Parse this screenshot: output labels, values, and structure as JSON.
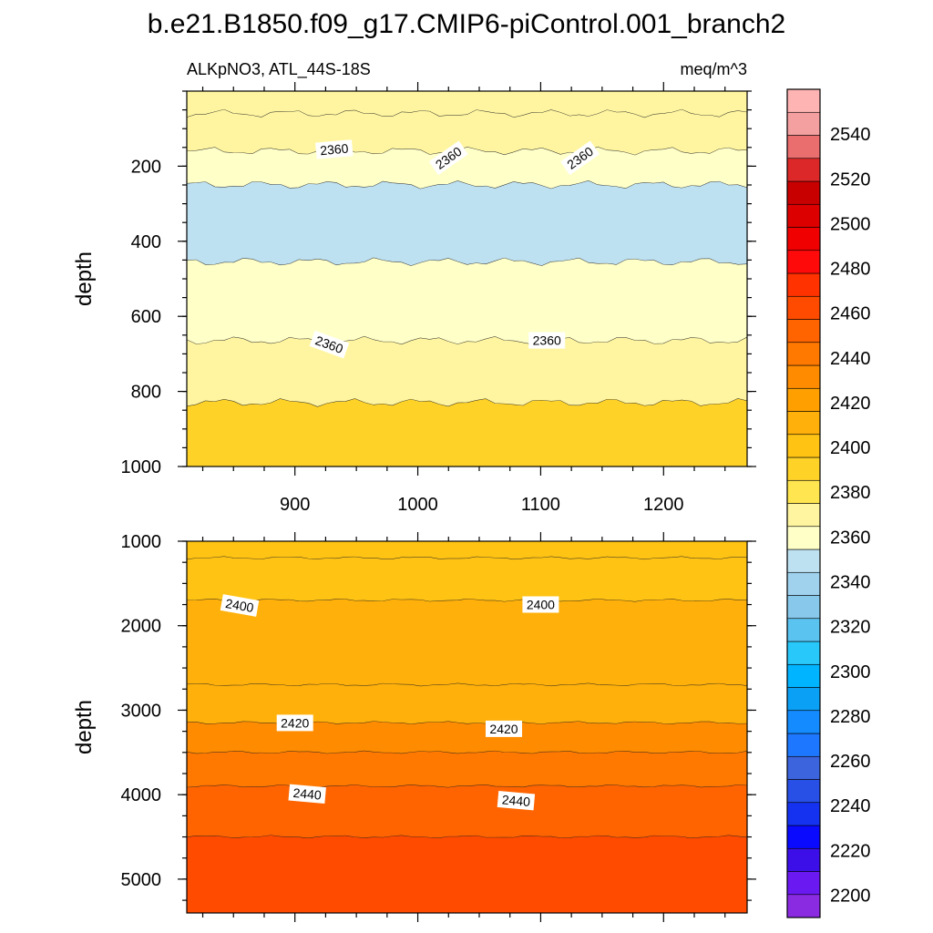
{
  "chart_data": {
    "type": "heatmap",
    "title": "b.e21.B1850.f09_g17.CMIP6-piControl.001_branch2",
    "left_subtitle": "ALKpNO3, ATL_44S-18S",
    "right_subtitle": "meq/m^3",
    "panels": [
      {
        "ylabel": "depth",
        "xlim": [
          812,
          1268
        ],
        "ylim": [
          0,
          1000
        ],
        "y_reversed": true,
        "x_ticks": [
          900,
          1000,
          1100,
          1200
        ],
        "x_tick_labels": [
          "900",
          "1000",
          "1100",
          "1200"
        ],
        "y_ticks": [
          200,
          400,
          600,
          800,
          1000
        ],
        "y_tick_labels": [
          "200",
          "400",
          "600",
          "800",
          "1000"
        ],
        "bands": [
          {
            "from": 0,
            "to": 60,
            "level": 2360
          },
          {
            "from": 60,
            "to": 160,
            "level": 2360
          },
          {
            "from": 160,
            "to": 250,
            "level": 2350
          },
          {
            "from": 250,
            "to": 455,
            "level": 2340
          },
          {
            "from": 455,
            "to": 665,
            "level": 2350
          },
          {
            "from": 665,
            "to": 830,
            "level": 2360
          },
          {
            "from": 830,
            "to": 1000,
            "level": 2380
          }
        ],
        "contour_labels": [
          {
            "text": "2360",
            "x": 932,
            "y": 155,
            "angle": -5
          },
          {
            "text": "2360",
            "x": 1025,
            "y": 178,
            "angle": -35
          },
          {
            "text": "2360",
            "x": 1132,
            "y": 178,
            "angle": -35
          },
          {
            "text": "2360",
            "x": 928,
            "y": 675,
            "angle": 20
          },
          {
            "text": "2360",
            "x": 1105,
            "y": 664,
            "angle": 0
          }
        ]
      },
      {
        "ylabel": "depth",
        "xlim": [
          812,
          1268
        ],
        "ylim": [
          1000,
          5400
        ],
        "y_reversed": true,
        "x_ticks": [
          900,
          1000,
          1100,
          1200
        ],
        "y_ticks": [
          1000,
          2000,
          3000,
          4000,
          5000
        ],
        "y_tick_labels": [
          "1000",
          "2000",
          "3000",
          "4000",
          "5000"
        ],
        "bands": [
          {
            "from": 1000,
            "to": 1200,
            "level": 2390
          },
          {
            "from": 1200,
            "to": 1700,
            "level": 2395
          },
          {
            "from": 1700,
            "to": 2700,
            "level": 2400
          },
          {
            "from": 2700,
            "to": 3150,
            "level": 2405
          },
          {
            "from": 3150,
            "to": 3500,
            "level": 2420
          },
          {
            "from": 3500,
            "to": 3900,
            "level": 2430
          },
          {
            "from": 3900,
            "to": 4500,
            "level": 2440
          },
          {
            "from": 4500,
            "to": 5400,
            "level": 2450
          }
        ],
        "contour_labels": [
          {
            "text": "2400",
            "x": 855,
            "y": 1760,
            "angle": 10
          },
          {
            "text": "2400",
            "x": 1100,
            "y": 1750,
            "angle": 0
          },
          {
            "text": "2420",
            "x": 900,
            "y": 3150,
            "angle": 0
          },
          {
            "text": "2420",
            "x": 1070,
            "y": 3220,
            "angle": 0
          },
          {
            "text": "2440",
            "x": 910,
            "y": 3990,
            "angle": 5
          },
          {
            "text": "2440",
            "x": 1080,
            "y": 4070,
            "angle": 5
          }
        ]
      }
    ],
    "colorbar": {
      "min": 2190,
      "max": 2560,
      "step": 10,
      "labels": [
        "2200",
        "2220",
        "2240",
        "2260",
        "2280",
        "2300",
        "2320",
        "2340",
        "2360",
        "2380",
        "2400",
        "2420",
        "2440",
        "2460",
        "2480",
        "2500",
        "2520",
        "2540"
      ],
      "colors": [
        "#8a2be2",
        "#6a1af0",
        "#3c0fe8",
        "#0a0aff",
        "#1432f0",
        "#2850e6",
        "#3c64dc",
        "#1e78ff",
        "#148cff",
        "#0aa0f5",
        "#00b4ff",
        "#28c8fa",
        "#5ac3f0",
        "#87c8eb",
        "#a0d2ee",
        "#bee1f2",
        "#ffffc8",
        "#fff5a0",
        "#ffe650",
        "#ffd228",
        "#ffc314",
        "#ffb00a",
        "#ffa000",
        "#ff8c00",
        "#ff7800",
        "#ff6400",
        "#ff4b00",
        "#ff3200",
        "#ff0a0a",
        "#f00000",
        "#dc0000",
        "#c80000",
        "#dc2828",
        "#eb6e6e",
        "#f5a0a0",
        "#ffb4b4"
      ]
    }
  }
}
